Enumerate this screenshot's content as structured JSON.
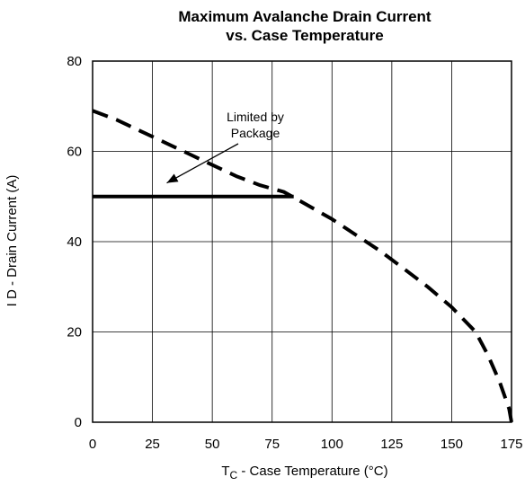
{
  "chart_data": {
    "type": "line",
    "title_line1": "Maximum Avalanche Drain Current",
    "title_line2": "vs. Case Temperature",
    "ylabel": "I D - Drain Current (A)",
    "xlabel_prefix": "T",
    "xlabel_subscript": "C",
    "xlabel_suffix": " - Case Temperature (°C)",
    "xlim": [
      0,
      175
    ],
    "ylim": [
      0,
      80
    ],
    "x_ticks": [
      0,
      25,
      50,
      75,
      100,
      125,
      150,
      175
    ],
    "y_ticks": [
      0,
      20,
      40,
      60,
      80
    ],
    "grid": true,
    "series": [
      {
        "style": "dashed",
        "x": [
          0,
          10,
          20,
          30,
          40,
          50,
          60,
          70,
          80,
          90,
          100,
          110,
          120,
          130,
          140,
          150,
          160,
          165,
          170,
          172,
          174,
          175
        ],
        "y": [
          69,
          67,
          64.5,
          62,
          59.5,
          57,
          54.5,
          52.5,
          51,
          48,
          45,
          41.5,
          38,
          34,
          30,
          25.5,
          20,
          15,
          9,
          6,
          3,
          0
        ]
      },
      {
        "style": "solid",
        "x": [
          0,
          84
        ],
        "y": [
          50,
          50
        ]
      }
    ],
    "annotation": {
      "text_line1": "Limited by",
      "text_line2": "Package",
      "arrow_target": [
        31,
        53
      ]
    }
  }
}
